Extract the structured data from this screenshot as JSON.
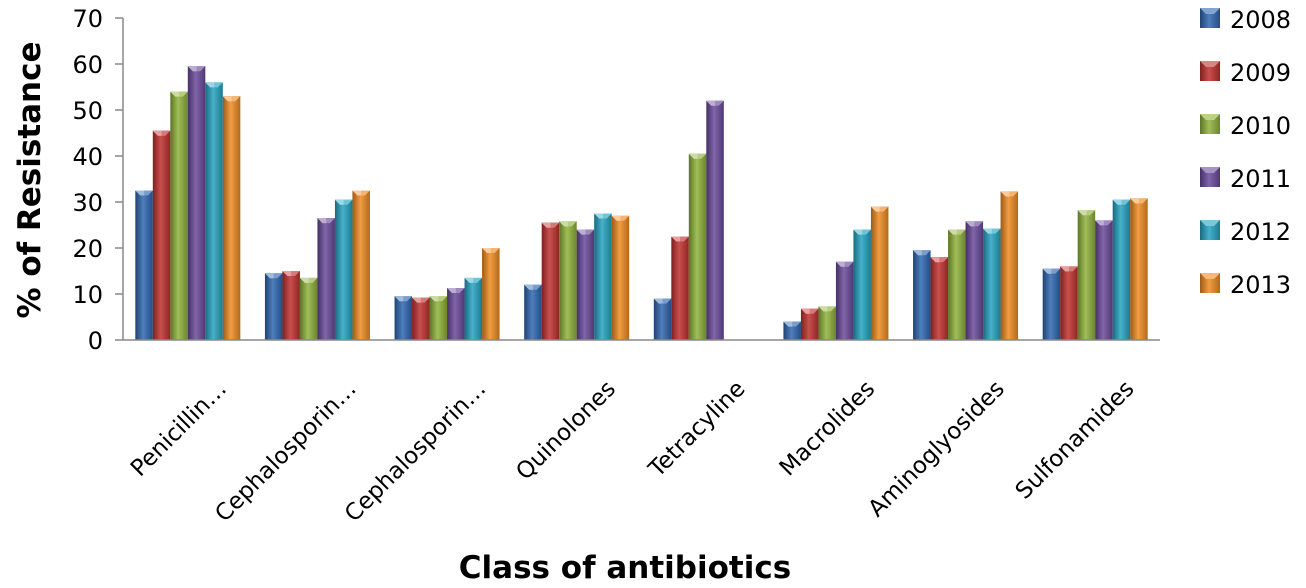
{
  "chart_data": {
    "type": "bar",
    "title": "",
    "xlabel": "Class of antibiotics",
    "ylabel": "% of Resistance",
    "ylim": [
      0,
      70
    ],
    "yticks": [
      0,
      10,
      20,
      30,
      40,
      50,
      60,
      70
    ],
    "grid": false,
    "legend_position": "right",
    "categories": [
      "Penicillin…",
      "Cephalosporin…",
      "Cephalosporin…",
      "Quinolones",
      "Tetracyline",
      "Macrolides",
      "Aminoglyosides",
      "Sulfonamides"
    ],
    "series": [
      {
        "name": "2008",
        "color": "#2f67b1",
        "values": [
          32.5,
          14.5,
          9.5,
          12,
          9,
          4,
          19.5,
          15.5
        ]
      },
      {
        "name": "2009",
        "color": "#c0312f",
        "values": [
          45.5,
          15,
          9.2,
          25.5,
          22.5,
          6.8,
          18,
          16
        ]
      },
      {
        "name": "2010",
        "color": "#8fb23b",
        "values": [
          54,
          13.5,
          9.5,
          25.8,
          40.5,
          7.3,
          24,
          28.2
        ]
      },
      {
        "name": "2011",
        "color": "#6a4a9b",
        "values": [
          59.5,
          26.5,
          11.3,
          24,
          52,
          17,
          25.8,
          26
        ]
      },
      {
        "name": "2012",
        "color": "#25a3c2",
        "values": [
          56,
          30.5,
          13.5,
          27.5,
          0,
          24,
          24.2,
          30.5
        ]
      },
      {
        "name": "2013",
        "color": "#ee8c22",
        "values": [
          53,
          32.5,
          20,
          27,
          0,
          29,
          32.3,
          30.8
        ]
      }
    ]
  }
}
